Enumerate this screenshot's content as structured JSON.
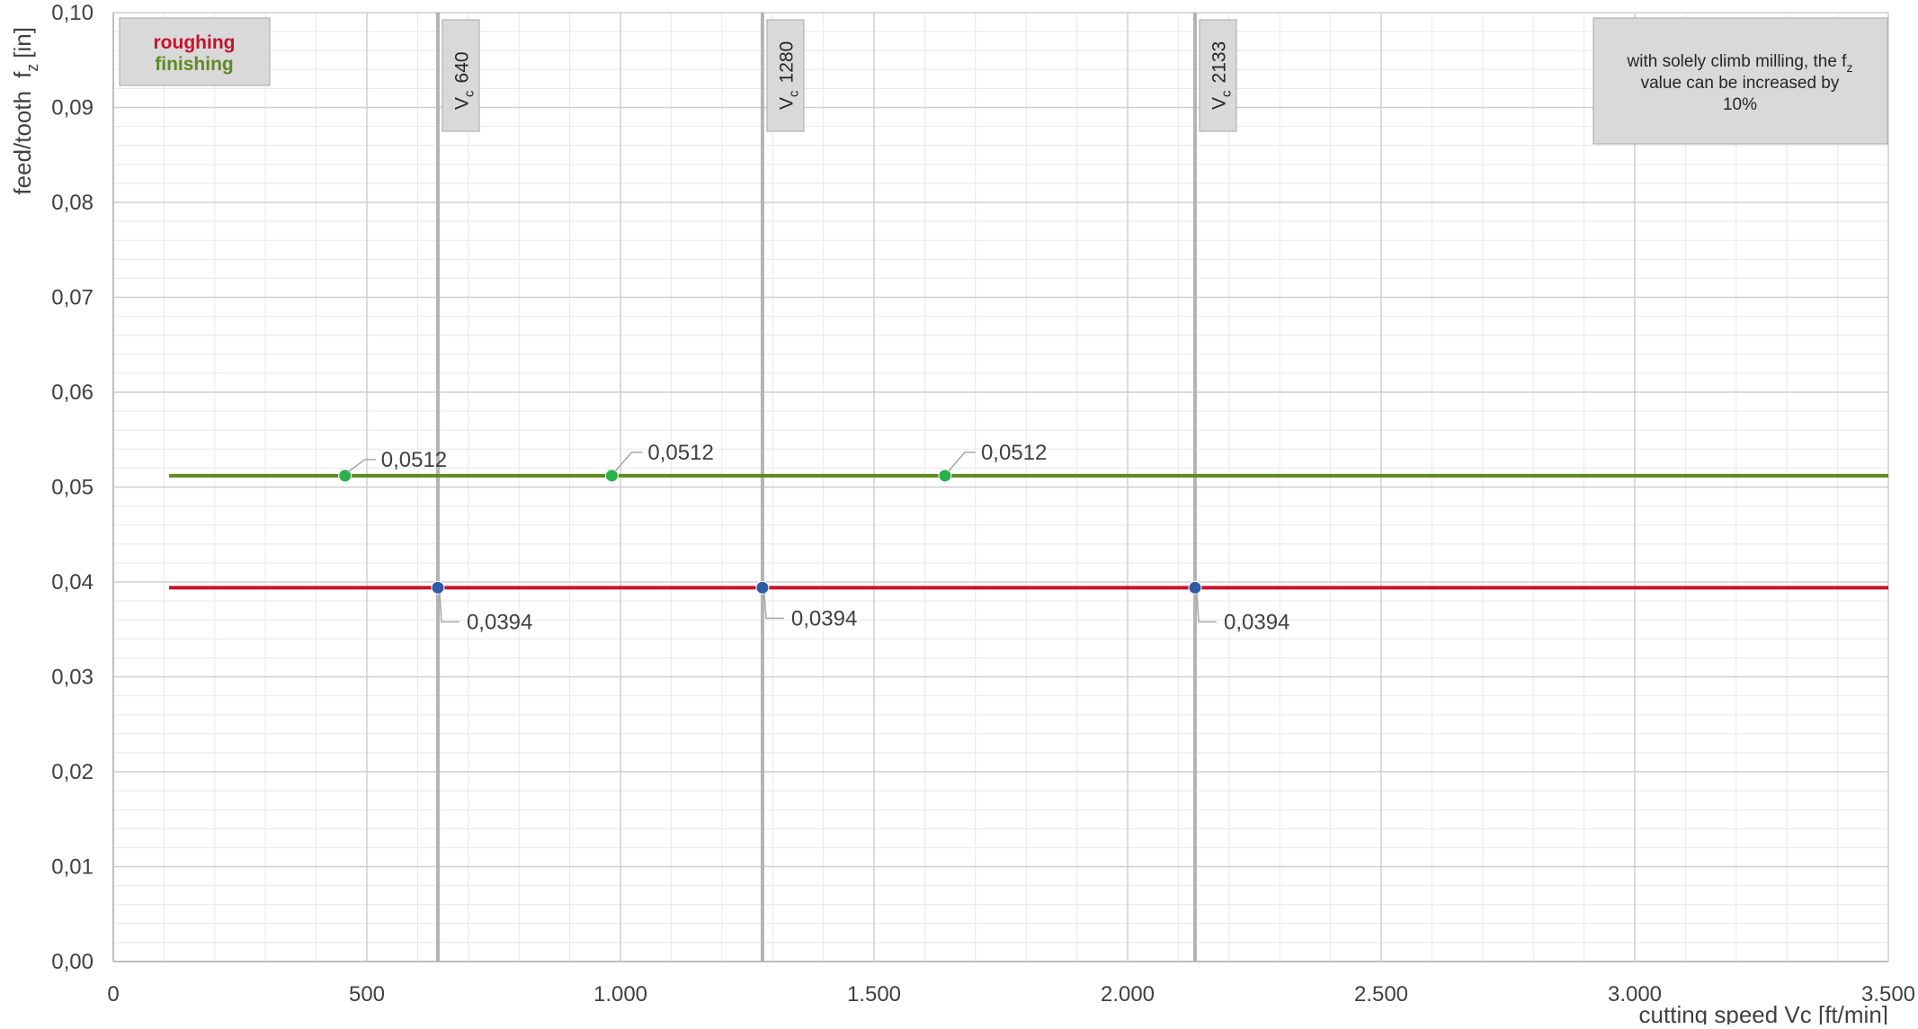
{
  "chart_data": {
    "type": "line",
    "xlabel": "cutting speed Vc [ft/min]",
    "ylabel": "feed/tooth",
    "ylabel_symbol": "f",
    "ylabel_sub": "z",
    "ylabel_unit": "[in]",
    "xlim": [
      0,
      3500
    ],
    "ylim": [
      0,
      0.1
    ],
    "x_ticks": [
      0,
      500,
      1000,
      1500,
      2000,
      2500,
      3000,
      3500
    ],
    "x_tick_labels": [
      "0",
      "500",
      "1.000",
      "1.500",
      "2.000",
      "2.500",
      "3.000",
      "3.500"
    ],
    "y_ticks": [
      0,
      0.01,
      0.02,
      0.03,
      0.04,
      0.05,
      0.06,
      0.07,
      0.08,
      0.09,
      0.1
    ],
    "y_tick_labels": [
      "0,00",
      "0,01",
      "0,02",
      "0,03",
      "0,04",
      "0,05",
      "0,06",
      "0,07",
      "0,08",
      "0,09",
      "0,10"
    ],
    "x_minor_step": 100,
    "y_minor_step": 0.002,
    "grid": true,
    "series": [
      {
        "name": "roughing",
        "color": "#c8102e",
        "marker_color": "#2e5aa8",
        "x_range": [
          110,
          3500
        ],
        "y": 0.0394,
        "points": [
          {
            "x": 640,
            "y": 0.0394,
            "label": "0,0394"
          },
          {
            "x": 1280,
            "y": 0.0394,
            "label": "0,0394"
          },
          {
            "x": 2133,
            "y": 0.0394,
            "label": "0,0394"
          }
        ]
      },
      {
        "name": "finishing",
        "color": "#5e8a1f",
        "marker_color": "#2bb04a",
        "x_range": [
          110,
          3500
        ],
        "y": 0.0512,
        "points": [
          {
            "x": 457,
            "y": 0.0512,
            "label": "0,0512"
          },
          {
            "x": 983,
            "y": 0.0512,
            "label": "0,0512"
          },
          {
            "x": 1640,
            "y": 0.0512,
            "label": "0,0512"
          }
        ]
      }
    ],
    "vertical_markers": [
      {
        "x": 640,
        "label_main": "V",
        "label_sub": "c",
        "label_value": "640"
      },
      {
        "x": 1280,
        "label_main": "V",
        "label_sub": "c",
        "label_value": "1280"
      },
      {
        "x": 2133,
        "label_main": "V",
        "label_sub": "c",
        "label_value": "2133"
      }
    ],
    "legend": {
      "placement": "top-left",
      "items": [
        {
          "label": "roughing",
          "color": "#c8102e"
        },
        {
          "label": "finishing",
          "color": "#5e8a1f"
        }
      ]
    },
    "annotation": {
      "placement": "top-right",
      "line1": "with solely climb milling, the f",
      "line1_sub": "z",
      "line2": "value can be increased by",
      "line3": "10%"
    }
  }
}
